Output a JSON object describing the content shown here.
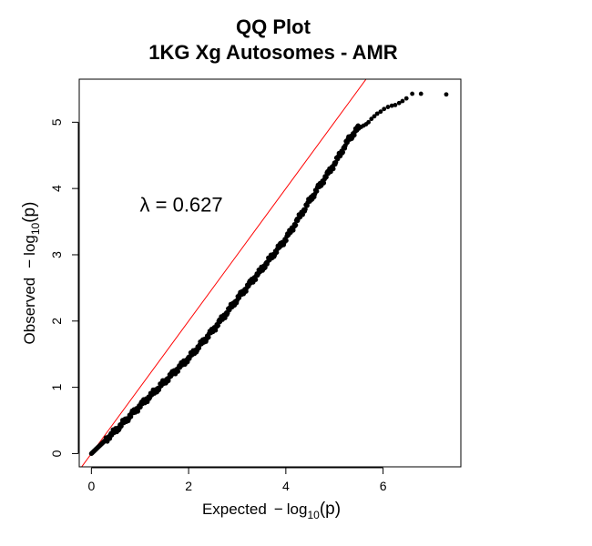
{
  "chart_data": {
    "type": "scatter",
    "title": "QQ Plot",
    "subtitle": "1KG Xg Autosomes - AMR",
    "xlabel": {
      "main": "Expected",
      "minus": "−",
      "log": "log",
      "sub": "10",
      "arg": "(p)"
    },
    "ylabel": {
      "main": "Observed",
      "minus": "−",
      "log": "log",
      "sub": "10",
      "arg": "(p)"
    },
    "xlim": [
      -0.25,
      7.6
    ],
    "ylim": [
      -0.2,
      5.65
    ],
    "x_ticks": [
      0,
      2,
      4,
      6
    ],
    "y_ticks": [
      0,
      1,
      2,
      3,
      4,
      5
    ],
    "reference_line": {
      "slope": 1,
      "intercept": 0,
      "color": "#ff0000"
    },
    "point_color": "#000000",
    "annotation": {
      "text": "λ = 0.627",
      "x": 1.85,
      "y": 3.65
    },
    "curve_knots": [
      [
        0,
        0
      ],
      [
        0.5,
        0.35
      ],
      [
        1,
        0.72
      ],
      [
        1.5,
        1.08
      ],
      [
        2,
        1.44
      ],
      [
        2.5,
        1.86
      ],
      [
        3,
        2.33
      ],
      [
        3.5,
        2.78
      ],
      [
        4,
        3.24
      ],
      [
        4.5,
        3.83
      ],
      [
        5,
        4.37
      ],
      [
        5.3,
        4.75
      ],
      [
        5.5,
        4.92
      ]
    ],
    "tail_points": [
      [
        5.55,
        4.93
      ],
      [
        5.6,
        4.95
      ],
      [
        5.65,
        4.97
      ],
      [
        5.7,
        5.0
      ],
      [
        5.76,
        5.05
      ],
      [
        5.82,
        5.09
      ],
      [
        5.88,
        5.13
      ],
      [
        5.95,
        5.16
      ],
      [
        6.02,
        5.2
      ],
      [
        6.1,
        5.23
      ],
      [
        6.18,
        5.25
      ],
      [
        6.25,
        5.26
      ],
      [
        6.33,
        5.29
      ],
      [
        6.4,
        5.32
      ],
      [
        6.48,
        5.36
      ],
      [
        6.6,
        5.43
      ],
      [
        6.78,
        5.43
      ],
      [
        7.3,
        5.42
      ]
    ]
  }
}
